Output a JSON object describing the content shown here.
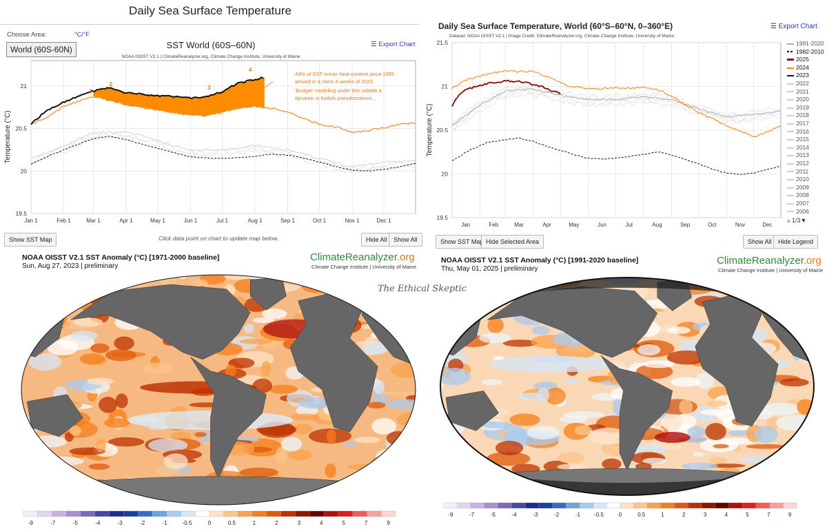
{
  "left_panel": {
    "page_title": "Daily Sea Surface Temperature",
    "choose_area_label": "Choose Area:",
    "units_toggle": "°C/°F",
    "area_select": "World (60S-60N)",
    "export_label": "Export Chart",
    "show_map_btn": "Show SST Map",
    "hint": "Click data point on chart to update map below.",
    "hide_all_btn": "Hide All",
    "show_all_btn": "Show All"
  },
  "right_panel": {
    "export_label": "Export Chart",
    "show_map_btn": "Show SST Map",
    "hide_selected_btn": "Hide Selected Area",
    "show_all_btn": "Show All",
    "hide_legend_btn": "Hide Legend",
    "legend_page": "1/3",
    "legend": [
      {
        "label": "1991-2020",
        "color": "#aaaaaa",
        "style": "solid"
      },
      {
        "label": "1982-2010",
        "color": "#111111",
        "style": "dash"
      },
      {
        "label": "2025",
        "color": "#8b0000",
        "style": "solid"
      },
      {
        "label": "2024",
        "color": "#f0891f",
        "style": "solid"
      },
      {
        "label": "2023",
        "color": "#111111",
        "style": "solid"
      },
      {
        "label": "2022",
        "color": "#cccccc",
        "style": "solid"
      },
      {
        "label": "2021",
        "color": "#cccccc",
        "style": "solid"
      },
      {
        "label": "2020",
        "color": "#cccccc",
        "style": "solid"
      },
      {
        "label": "2019",
        "color": "#cccccc",
        "style": "solid"
      },
      {
        "label": "2018",
        "color": "#cccccc",
        "style": "solid"
      },
      {
        "label": "2017",
        "color": "#cccccc",
        "style": "solid"
      },
      {
        "label": "2016",
        "color": "#cccccc",
        "style": "solid"
      },
      {
        "label": "2015",
        "color": "#cccccc",
        "style": "solid"
      },
      {
        "label": "2014",
        "color": "#cccccc",
        "style": "solid"
      },
      {
        "label": "2013",
        "color": "#cccccc",
        "style": "solid"
      },
      {
        "label": "2012",
        "color": "#cccccc",
        "style": "solid"
      },
      {
        "label": "2011",
        "color": "#cccccc",
        "style": "solid"
      },
      {
        "label": "2010",
        "color": "#cccccc",
        "style": "solid"
      },
      {
        "label": "2009",
        "color": "#cccccc",
        "style": "solid"
      },
      {
        "label": "2008",
        "color": "#cccccc",
        "style": "solid"
      },
      {
        "label": "2007",
        "color": "#cccccc",
        "style": "solid"
      },
      {
        "label": "2006",
        "color": "#cccccc",
        "style": "solid"
      }
    ]
  },
  "watermark": "The Ethical Skeptic",
  "maps": [
    {
      "title": "NOAA OISST V2.1 SST Anomaly (°C) [1971-2000 baseline]",
      "subtitle": "Sun, Aug 27, 2023 | preliminary",
      "logo_a": "ClimateReanalyzer",
      "logo_b": ".org",
      "logo_sub": "Climate Change Institute | University of Maine"
    },
    {
      "title": "NOAA OISST V2.1 SST Anomaly (°C) [1991-2020 baseline]",
      "subtitle": "Thu, May 01, 2025 | preliminary",
      "logo_a": "ClimateReanalyzer",
      "logo_b": ".org",
      "logo_sub": "Climate Change Institute | University of Maine"
    }
  ],
  "color_scale": {
    "labels": [
      "-9",
      "-7",
      "-5",
      "-4",
      "-3",
      "-2",
      "-1",
      "-0.5",
      "0",
      "0.5",
      "1",
      "2",
      "3",
      "4",
      "5",
      "7",
      "9"
    ],
    "colors": [
      "#f3eef8",
      "#e2d6ef",
      "#c7b3e0",
      "#a98fd2",
      "#7c68c0",
      "#4b45a8",
      "#1e2b8f",
      "#1b3fa8",
      "#2f6fca",
      "#6ea3de",
      "#a9cbee",
      "#d6e6f6",
      "#ffffff",
      "#fde3c6",
      "#fbc58a",
      "#f9a24b",
      "#f57f1a",
      "#e05a0a",
      "#bd3300",
      "#8f1600",
      "#6b0000",
      "#b01010",
      "#e01e1e",
      "#f25c5c",
      "#f7a0a0",
      "#fbd6d6"
    ]
  },
  "chart_data": [
    {
      "type": "line",
      "title": "SST World (60S–60N)",
      "subtitle": "NOAA OISST V2.1 | ClimateReanalyzer.org, Climate Change Institute, University of Maine",
      "xlabel": "",
      "ylabel": "Temperature (°C)",
      "categories": [
        "Jan 1",
        "Feb 1",
        "Mar 1",
        "Apr 1",
        "May 1",
        "Jun 1",
        "Jul 1",
        "Aug 1",
        "Sep 1",
        "Oct 1",
        "Nov 1",
        "Dec 1"
      ],
      "yticks": [
        "19.5",
        "20",
        "20.5",
        "21"
      ],
      "ylim": [
        19.5,
        21.3
      ],
      "grid": true,
      "series": [
        {
          "name": "2023",
          "color": "#111111",
          "style": "solid",
          "x": [
            1,
            15,
            30,
            45,
            60,
            75,
            91,
            110,
            130,
            150,
            165,
            181,
            196,
            213,
            222
          ],
          "y": [
            20.55,
            20.71,
            20.8,
            20.88,
            20.94,
            20.98,
            20.92,
            20.9,
            20.88,
            20.86,
            20.87,
            20.93,
            21.03,
            21.08,
            21.1
          ]
        },
        {
          "name": "2024",
          "color": "#f0891f",
          "style": "solid",
          "x": [
            1,
            15,
            32,
            50,
            60,
            75,
            91,
            110,
            130,
            150,
            165,
            181,
            196,
            213,
            230,
            245,
            260,
            275,
            290,
            305,
            320,
            335,
            350,
            365
          ],
          "y": [
            20.55,
            20.62,
            20.76,
            20.84,
            20.88,
            20.83,
            20.78,
            20.74,
            20.7,
            20.66,
            20.65,
            20.69,
            20.74,
            20.76,
            20.74,
            20.69,
            20.61,
            20.55,
            20.52,
            20.45,
            20.48,
            20.51,
            20.55,
            20.57
          ]
        },
        {
          "name": "1982-2010",
          "color": "#111111",
          "style": "dash",
          "x": [
            1,
            20,
            40,
            60,
            75,
            91,
            110,
            130,
            150,
            170,
            190,
            210,
            230,
            250,
            270,
            290,
            305,
            320,
            335,
            350,
            365
          ],
          "y": [
            20.08,
            20.19,
            20.29,
            20.38,
            20.41,
            20.37,
            20.3,
            20.24,
            20.17,
            20.15,
            20.15,
            20.17,
            20.2,
            20.18,
            20.12,
            20.05,
            20.01,
            20.0,
            20.02,
            20.05,
            20.09
          ]
        },
        {
          "name": "1991-2020",
          "color": "#cccccc",
          "style": "solid",
          "x": [
            1,
            30,
            60,
            91,
            120,
            150,
            181,
            212,
            243,
            273,
            304,
            334,
            365
          ],
          "y": [
            20.15,
            20.28,
            20.45,
            20.46,
            20.36,
            20.25,
            20.25,
            20.3,
            20.25,
            20.15,
            20.05,
            20.1,
            20.12
          ]
        }
      ],
      "annotations": [
        "1",
        "2",
        "3",
        "4",
        "43% of SST ocean heat content since 1995",
        "arrived in a mere 4 weeks of 2023",
        "'Budget' modeling under this volatile a",
        "dynamic is foolish pseudoscience..."
      ]
    },
    {
      "type": "line",
      "title": "Daily Sea Surface Temperature, World (60°S–60°N, 0–360°E)",
      "subtitle": "Dataset: NOAA OISST V2.1 | Image Credit: ClimateReanalyzer.org, Climate Change Institute, University of Maine",
      "xlabel": "",
      "ylabel": "Temperature (°C)",
      "categories": [
        "Jan",
        "Feb",
        "Mar",
        "Apr",
        "May",
        "Jun",
        "Jul",
        "Aug",
        "Sep",
        "Oct",
        "Nov",
        "Dec"
      ],
      "yticks": [
        "19.5",
        "20",
        "20.5",
        "21",
        "21.5"
      ],
      "ylim": [
        19.5,
        21.5
      ],
      "grid": true,
      "series": [
        {
          "name": "2025",
          "color": "#8b0000",
          "style": "solid",
          "x": [
            1,
            10,
            20,
            30,
            40,
            50,
            60,
            70,
            80,
            90,
            100,
            110,
            121
          ],
          "y": [
            20.78,
            20.92,
            20.98,
            21.0,
            21.03,
            21.05,
            21.06,
            21.06,
            21.05,
            21.02,
            21.0,
            20.95,
            20.92
          ]
        },
        {
          "name": "2024",
          "color": "#f0891f",
          "style": "solid",
          "x": [
            1,
            15,
            32,
            50,
            60,
            75,
            91,
            110,
            130,
            150,
            165,
            181,
            196,
            213,
            230,
            245,
            260,
            275,
            290,
            305,
            320,
            335,
            350,
            365
          ],
          "y": [
            20.98,
            21.07,
            21.12,
            21.16,
            21.18,
            21.17,
            21.17,
            21.1,
            21.0,
            20.98,
            20.97,
            20.99,
            20.98,
            20.99,
            20.96,
            20.88,
            20.78,
            20.7,
            20.63,
            20.55,
            20.49,
            20.42,
            20.48,
            20.55
          ]
        },
        {
          "name": "1982-2010",
          "color": "#111111",
          "style": "dash",
          "x": [
            1,
            20,
            40,
            60,
            75,
            91,
            110,
            130,
            150,
            170,
            190,
            210,
            230,
            250,
            270,
            290,
            305,
            320,
            335,
            350,
            365
          ],
          "y": [
            20.15,
            20.27,
            20.36,
            20.39,
            20.41,
            20.37,
            20.3,
            20.24,
            20.18,
            20.17,
            20.19,
            20.22,
            20.25,
            20.2,
            20.13,
            20.05,
            20.01,
            19.99,
            20.01,
            20.05,
            20.09
          ]
        },
        {
          "name": "1991-2020",
          "color": "#aaaaaa",
          "style": "solid",
          "x": [
            1,
            30,
            60,
            91,
            120,
            150,
            181,
            212,
            243,
            273,
            304,
            334,
            365
          ],
          "y": [
            20.55,
            20.78,
            20.95,
            20.97,
            20.9,
            20.85,
            20.85,
            20.88,
            20.85,
            20.75,
            20.65,
            20.68,
            20.72
          ]
        }
      ]
    }
  ]
}
